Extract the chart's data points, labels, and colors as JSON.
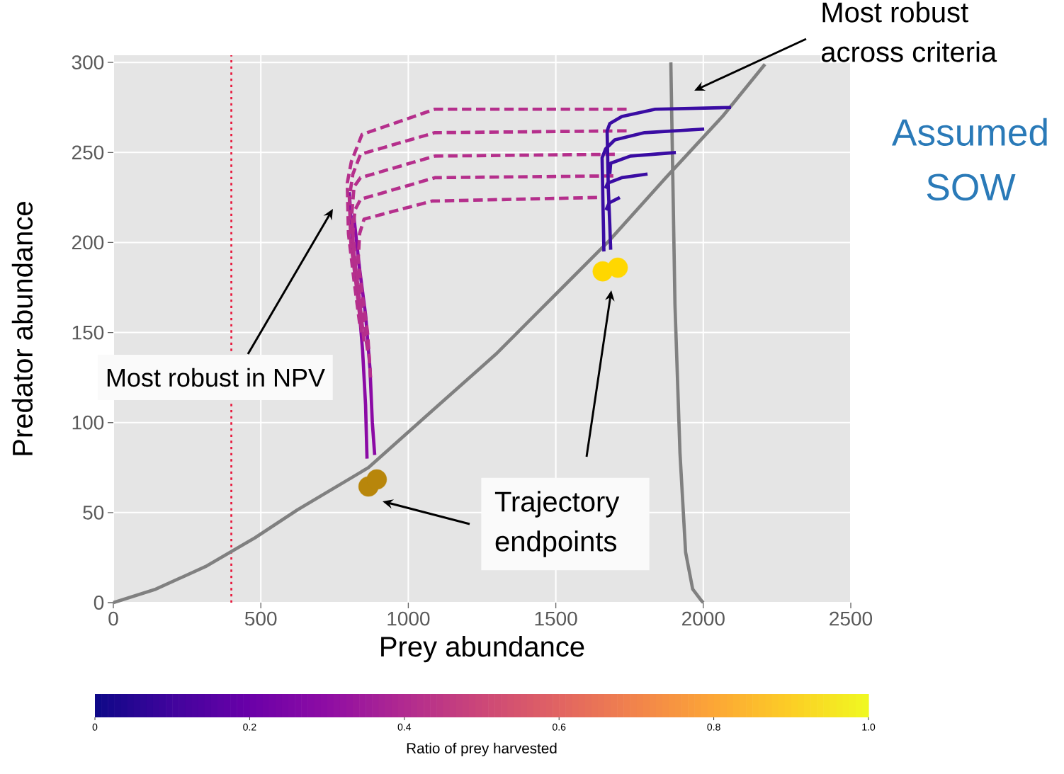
{
  "chart_data": {
    "type": "line",
    "xlabel": "Prey abundance",
    "ylabel": "Predator abundance",
    "clabel": "Ratio of prey harvested",
    "xlim": [
      0,
      2500
    ],
    "ylim": [
      0,
      304
    ],
    "xticks": [
      0,
      500,
      1000,
      1500,
      2000,
      2500
    ],
    "yticks": [
      0,
      50,
      100,
      150,
      200,
      250,
      300
    ],
    "clim": [
      0,
      1
    ],
    "cticks": [
      0,
      0.2,
      0.4,
      0.6,
      0.8,
      {
        "value": 1,
        "label": "1.0"
      }
    ],
    "grid": true,
    "ref_lines": [
      {
        "axis": "x",
        "value": 400,
        "color": "#e8173b",
        "line_style": "dotted"
      }
    ],
    "annotations": [
      "Most robust across criteria",
      "Assumed SOW",
      "Most robust in NPV",
      "Trajectory endpoints"
    ],
    "series": [
      {
        "color": "#808080",
        "x": [
          0,
          144,
          312,
          480,
          624,
          865,
          1081,
          1297,
          1489,
          1681,
          1873,
          2065,
          2209
        ],
        "values": [
          0,
          7.5,
          20,
          36,
          51.5,
          75,
          106.6,
          138,
          169.5,
          201,
          236,
          270,
          299
        ]
      },
      {
        "color": "#808080",
        "x": [
          1890,
          1904,
          1921,
          1940,
          1964,
          1993,
          2000
        ],
        "values": [
          300,
          165.5,
          83,
          28,
          7.5,
          1.2,
          0
        ]
      },
      {
        "color": "#8b0aa5",
        "x": [
          800,
          810,
          830,
          845,
          855,
          860
        ],
        "values": [
          228,
          200,
          170,
          140,
          110,
          80
        ]
      },
      {
        "color": "#8b0aa5",
        "x": [
          815,
          835,
          855,
          870,
          878,
          886
        ],
        "values": [
          215,
          185,
          160,
          130,
          100,
          82
        ]
      },
      {
        "color": "#b52f8c",
        "line_style": "dashed",
        "x": [
          1740,
          1090,
          843,
          807,
          793,
          797,
          815,
          835
        ],
        "values": [
          274,
          274,
          260,
          245,
          233,
          205,
          180,
          155
        ]
      },
      {
        "color": "#b52f8c",
        "line_style": "dashed",
        "x": [
          1740,
          1090,
          838,
          812,
          800,
          805,
          822,
          842
        ],
        "values": [
          262,
          261,
          249,
          238,
          225,
          200,
          178,
          150
        ]
      },
      {
        "color": "#b52f8c",
        "line_style": "dashed",
        "x": [
          1700,
          1090,
          838,
          816,
          808,
          815,
          832,
          850
        ],
        "values": [
          249,
          248,
          236,
          231,
          215,
          195,
          172,
          145
        ]
      },
      {
        "color": "#b52f8c",
        "line_style": "dashed",
        "x": [
          1695,
          1090,
          838,
          819,
          812,
          822,
          840,
          862
        ],
        "values": [
          237,
          236,
          224,
          218,
          205,
          188,
          165,
          140
        ]
      },
      {
        "color": "#b52f8c",
        "line_style": "dashed",
        "x": [
          1640,
          1080,
          850,
          835,
          830,
          845,
          862,
          872
        ],
        "values": [
          225,
          223,
          213,
          205,
          190,
          170,
          150,
          125
        ]
      },
      {
        "color": "#3a0ca3",
        "x": [
          2094,
          1837,
          1724,
          1683,
          1674,
          1678,
          1683,
          1686
        ],
        "values": [
          275,
          274,
          270,
          266,
          262,
          230,
          210,
          196
        ]
      },
      {
        "color": "#3a0ca3",
        "x": [
          2003,
          1801,
          1700,
          1669,
          1657,
          1660,
          1662,
          1663
        ],
        "values": [
          263,
          261,
          257,
          252,
          247,
          220,
          205,
          195
        ]
      },
      {
        "color": "#3a0ca3",
        "x": [
          1907,
          1753,
          1686,
          1683
        ],
        "values": [
          250,
          248,
          244,
          238
        ]
      },
      {
        "color": "#3a0ca3",
        "x": [
          1811,
          1724,
          1676,
          1668
        ],
        "values": [
          238,
          236,
          233,
          230
        ]
      },
      {
        "color": "#3a0ca3",
        "x": [
          1717,
          1681,
          1670
        ],
        "values": [
          225,
          222,
          218
        ]
      },
      {
        "type": "scatter",
        "marker": "circle",
        "color": "#b8860b",
        "x": [
          865,
          893
        ],
        "values": [
          64.5,
          68.4
        ]
      },
      {
        "type": "scatter",
        "marker": "circle",
        "color": "#ffd700",
        "x": [
          1659,
          1710
        ],
        "values": [
          184,
          186
        ]
      }
    ]
  }
}
